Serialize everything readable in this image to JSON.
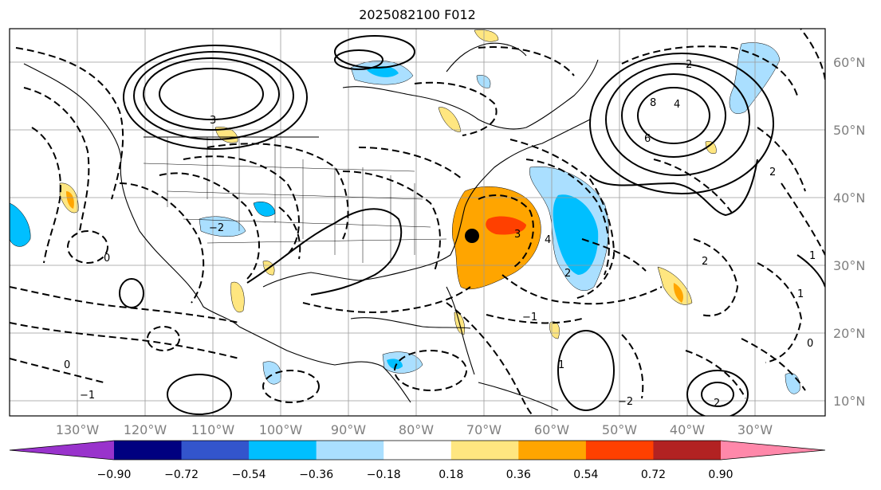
{
  "title": "2025082100 F012",
  "longitude_labels": [
    "130°W",
    "120°W",
    "110°W",
    "100°W",
    "90°W",
    "80°W",
    "70°W",
    "60°W",
    "50°W",
    "40°W",
    "30°W"
  ],
  "latitude_labels": [
    "60°N",
    "50°N",
    "40°N",
    "30°N",
    "20°N",
    "10°N"
  ],
  "colorbar": {
    "colors": [
      "#9933cc",
      "#000080",
      "#3355cc",
      "#00bfff",
      "#aadfff",
      "#ffffff",
      "#ffe680",
      "#ffa500",
      "#ff4000",
      "#b22222",
      "#ff88aa"
    ],
    "ticks": [
      "−0.90",
      "−0.72",
      "−0.54",
      "−0.36",
      "−0.18",
      "0.18",
      "0.36",
      "0.54",
      "0.72",
      "0.90"
    ]
  },
  "contour_labels": [
    "4",
    "8",
    "6",
    "3",
    "2",
    "2",
    "0",
    "−1",
    "−2",
    "1",
    "2",
    "0",
    "−2",
    "3",
    "4",
    "1",
    "0",
    "−1",
    "2",
    "1",
    "2"
  ],
  "marker": {
    "name": "storm-position",
    "lon": -71,
    "lat": 34
  }
}
